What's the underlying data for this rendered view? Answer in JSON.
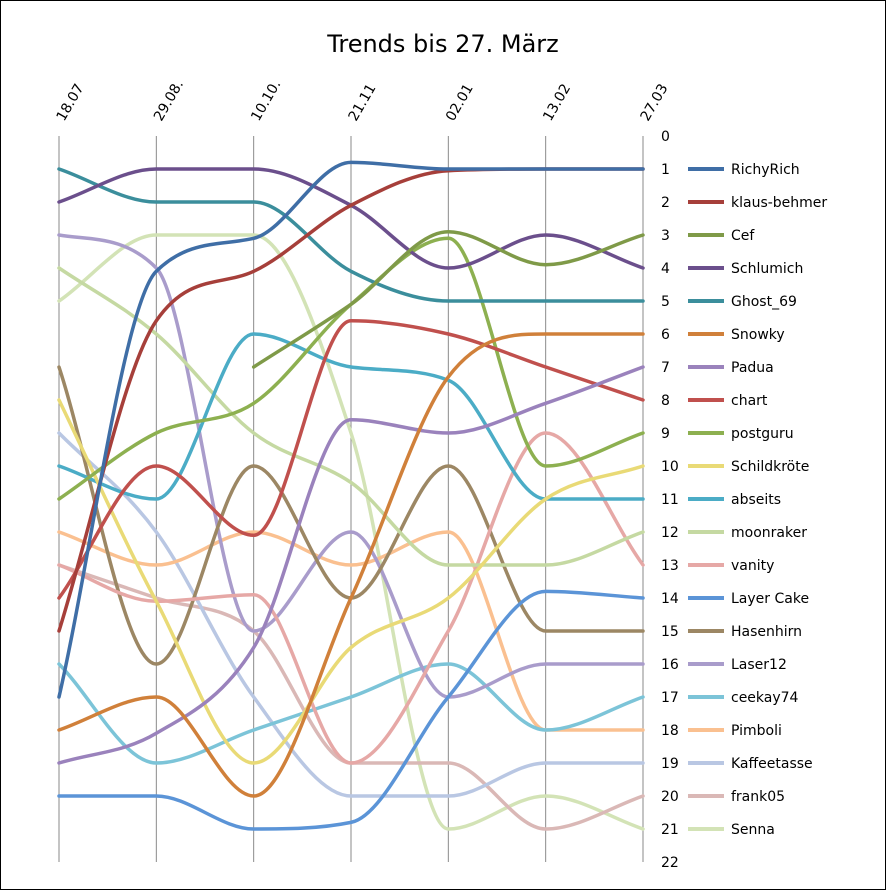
{
  "chart_data": {
    "type": "line",
    "title": "Trends bis 27. März",
    "x": [
      "18.07",
      "29.08.",
      "10.10.",
      "21.11",
      "02.01",
      "13.02",
      "27.03"
    ],
    "y_ticks": [
      "0",
      "1",
      "2",
      "3",
      "4",
      "5",
      "6",
      "7",
      "8",
      "9",
      "10",
      "11",
      "12",
      "13",
      "14",
      "15",
      "16",
      "17",
      "18",
      "19",
      "20",
      "21",
      "22"
    ],
    "ylim": [
      0,
      22
    ],
    "y_reversed": true,
    "grid": "vertical",
    "legend_position": "right",
    "smooth": true,
    "series": [
      {
        "name": "RichyRich",
        "color": "#3F6EA6",
        "values": [
          17,
          4.1,
          3.1,
          0.8,
          1,
          1,
          1
        ]
      },
      {
        "name": "klaus-behmer",
        "color": "#A63F3A",
        "values": [
          15,
          5.6,
          4.1,
          2.1,
          1.05,
          1,
          1
        ]
      },
      {
        "name": "Cef",
        "color": "#7F9A48",
        "values": [
          null,
          null,
          7,
          5.1,
          2.9,
          3.9,
          3
        ]
      },
      {
        "name": "Schlumich",
        "color": "#6B4F8C",
        "values": [
          2,
          1,
          1,
          2.1,
          4,
          3,
          4
        ]
      },
      {
        "name": "Ghost_69",
        "color": "#3B8E9C",
        "values": [
          1,
          2,
          2,
          4.1,
          5,
          5,
          5
        ]
      },
      {
        "name": "Snowky",
        "color": "#D0803A",
        "values": [
          18,
          17,
          20,
          14,
          7.3,
          6,
          6
        ]
      },
      {
        "name": "Padua",
        "color": "#9A82BC",
        "values": [
          19,
          18.1,
          15.5,
          8.6,
          9,
          8.1,
          7
        ]
      },
      {
        "name": "chart",
        "color": "#C0504D",
        "values": [
          14,
          10,
          12.1,
          5.6,
          6,
          7,
          8
        ]
      },
      {
        "name": "postguru",
        "color": "#8DB050",
        "values": [
          11,
          9,
          8.1,
          5.1,
          3.1,
          10,
          9
        ]
      },
      {
        "name": "Schildkröte",
        "color": "#E9DA76",
        "values": [
          8,
          14.1,
          19,
          15.5,
          14,
          11,
          10
        ]
      },
      {
        "name": "abseits",
        "color": "#4BACC6",
        "values": [
          10,
          11,
          6,
          7,
          7.4,
          11,
          11
        ]
      },
      {
        "name": "moonraker",
        "color": "#C5D9A2",
        "values": [
          4,
          6,
          9,
          10.5,
          13,
          13,
          12
        ]
      },
      {
        "name": "vanity",
        "color": "#E6A8A6",
        "values": [
          13,
          14.1,
          13.9,
          19,
          15,
          9,
          13
        ]
      },
      {
        "name": "Layer Cake",
        "color": "#5B94D7",
        "values": [
          20,
          20,
          21,
          20.8,
          17,
          13.8,
          14
        ]
      },
      {
        "name": "Hasenhirn",
        "color": "#9C8764",
        "values": [
          7,
          16,
          10,
          14,
          10,
          15,
          15
        ]
      },
      {
        "name": "Laser12",
        "color": "#A99CCB",
        "values": [
          3,
          4,
          15,
          12,
          17,
          16,
          16
        ]
      },
      {
        "name": "ceekay74",
        "color": "#7CC4D8",
        "values": [
          16,
          19,
          18,
          17,
          16,
          18,
          17
        ]
      },
      {
        "name": "Pimboli",
        "color": "#FAC090",
        "values": [
          12,
          13,
          12,
          13,
          12,
          18,
          18
        ]
      },
      {
        "name": "Kaffeetasse",
        "color": "#B9C7E3",
        "values": [
          9,
          12,
          17,
          20,
          20,
          19,
          19
        ]
      },
      {
        "name": "frank05",
        "color": "#DAB8B6",
        "values": [
          13,
          14,
          15,
          19,
          19,
          21,
          20
        ]
      },
      {
        "name": "Senna",
        "color": "#D3E3B6",
        "values": [
          5,
          3,
          3,
          9,
          21,
          20,
          21
        ]
      }
    ]
  }
}
